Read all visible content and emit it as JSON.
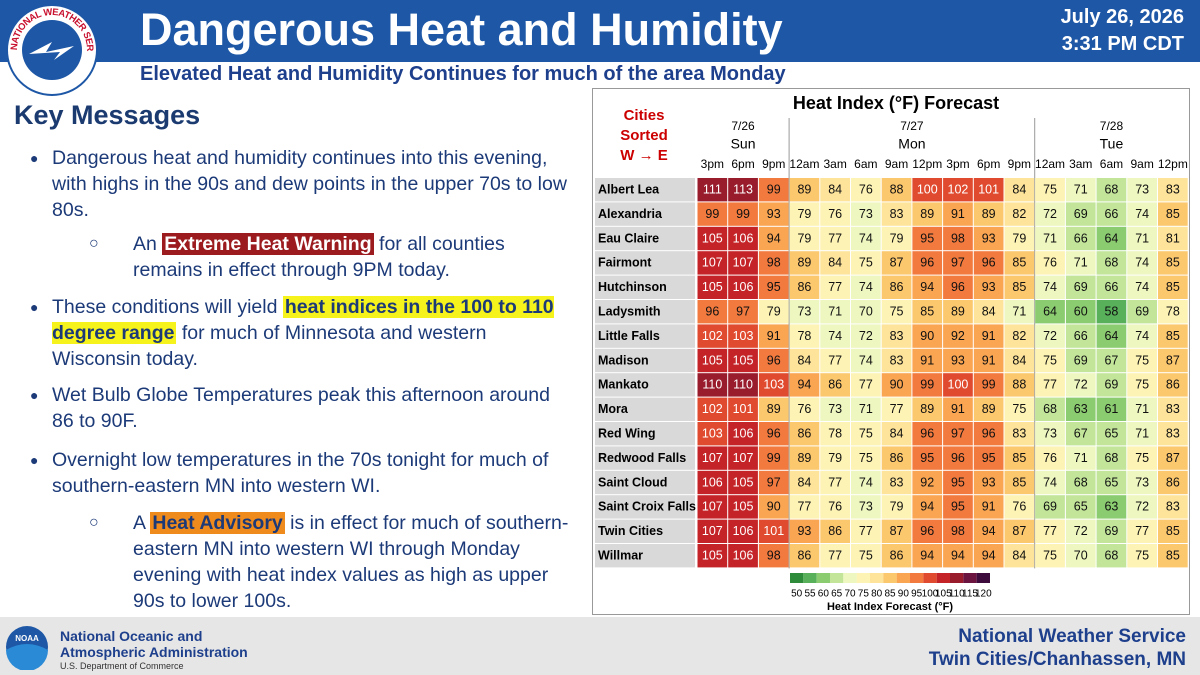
{
  "header": {
    "logo_text": "NATIONAL WEATHER SERVICE",
    "title": "Dangerous Heat and Humidity",
    "date": "July 26, 2026",
    "time": "3:31 PM CDT",
    "subtitle": "Elevated Heat and Humidity Continues for much of the area Monday"
  },
  "key_messages": {
    "heading": "Key Messages",
    "bullets": [
      {
        "parts": [
          "Dangerous heat and humidity continues into this evening, with highs in the 90s and dew points in the upper 70s to low 80s."
        ]
      },
      {
        "parts": [
          "An ",
          "Extreme Heat Warning",
          " for all counties remains in effect through 9PM today."
        ]
      },
      {
        "parts": [
          "These conditions will yield ",
          "heat indices in the 100 to 110 degree range",
          " for much of Minnesota and western Wisconsin today."
        ]
      },
      {
        "parts": [
          "Wet Bulb Globe Temperatures peak this afternoon around 86 to 90F."
        ]
      },
      {
        "parts": [
          "Overnight low temperatures in the 70s tonight for much of southern-eastern MN into western WI."
        ]
      },
      {
        "parts": [
          "A ",
          "Heat Advisory",
          " is in effect for much of southern-eastern MN into western WI through Monday evening with heat index values as high as upper 90s to lower 100s."
        ]
      }
    ]
  },
  "table": {
    "title": "Heat Index (°F) Forecast",
    "sort_note": [
      "Cities",
      "Sorted",
      "W → E"
    ],
    "days": [
      {
        "date": "7/26",
        "day": "Sun",
        "span": 3
      },
      {
        "date": "7/27",
        "day": "Mon",
        "span": 8
      },
      {
        "date": "7/28",
        "day": "Tue",
        "span": 5
      }
    ],
    "times": [
      "3pm",
      "6pm",
      "9pm",
      "12am",
      "3am",
      "6am",
      "9am",
      "12pm",
      "3pm",
      "6pm",
      "9pm",
      "12am",
      "3am",
      "6am",
      "9am",
      "12pm"
    ],
    "rows": [
      {
        "city": "Albert Lea",
        "values": [
          111,
          113,
          99,
          89,
          84,
          76,
          88,
          100,
          102,
          101,
          84,
          75,
          71,
          68,
          73,
          83
        ]
      },
      {
        "city": "Alexandria",
        "values": [
          99,
          99,
          93,
          79,
          76,
          73,
          83,
          89,
          91,
          89,
          82,
          72,
          69,
          66,
          74,
          85
        ]
      },
      {
        "city": "Eau Claire",
        "values": [
          105,
          106,
          94,
          79,
          77,
          74,
          79,
          95,
          98,
          93,
          79,
          71,
          66,
          64,
          71,
          81
        ]
      },
      {
        "city": "Fairmont",
        "values": [
          107,
          107,
          98,
          89,
          84,
          75,
          87,
          96,
          97,
          96,
          85,
          76,
          71,
          68,
          74,
          85
        ]
      },
      {
        "city": "Hutchinson",
        "values": [
          105,
          106,
          95,
          86,
          77,
          74,
          86,
          94,
          96,
          93,
          85,
          74,
          69,
          66,
          74,
          85
        ]
      },
      {
        "city": "Ladysmith",
        "values": [
          96,
          97,
          79,
          73,
          71,
          70,
          75,
          85,
          89,
          84,
          71,
          64,
          60,
          58,
          69,
          78
        ]
      },
      {
        "city": "Little Falls",
        "values": [
          102,
          103,
          91,
          78,
          74,
          72,
          83,
          90,
          92,
          91,
          82,
          72,
          66,
          64,
          74,
          85
        ]
      },
      {
        "city": "Madison",
        "values": [
          105,
          105,
          96,
          84,
          77,
          74,
          83,
          91,
          93,
          91,
          84,
          75,
          69,
          67,
          75,
          87
        ]
      },
      {
        "city": "Mankato",
        "values": [
          110,
          110,
          103,
          94,
          86,
          77,
          90,
          99,
          100,
          99,
          88,
          77,
          72,
          69,
          75,
          86
        ]
      },
      {
        "city": "Mora",
        "values": [
          102,
          101,
          89,
          76,
          73,
          71,
          77,
          89,
          91,
          89,
          75,
          68,
          63,
          61,
          71,
          83
        ]
      },
      {
        "city": "Red Wing",
        "values": [
          103,
          106,
          96,
          86,
          78,
          75,
          84,
          96,
          97,
          96,
          83,
          73,
          67,
          65,
          71,
          83
        ]
      },
      {
        "city": "Redwood Falls",
        "values": [
          107,
          107,
          99,
          89,
          79,
          75,
          86,
          95,
          96,
          95,
          85,
          76,
          71,
          68,
          75,
          87
        ]
      },
      {
        "city": "Saint Cloud",
        "values": [
          106,
          105,
          97,
          84,
          77,
          74,
          83,
          92,
          95,
          93,
          85,
          74,
          68,
          65,
          73,
          86
        ]
      },
      {
        "city": "Saint Croix Falls",
        "values": [
          107,
          105,
          90,
          77,
          76,
          73,
          79,
          94,
          95,
          91,
          76,
          69,
          65,
          63,
          72,
          83
        ]
      },
      {
        "city": "Twin Cities",
        "values": [
          107,
          106,
          101,
          93,
          86,
          77,
          87,
          96,
          98,
          94,
          87,
          77,
          72,
          69,
          77,
          85
        ]
      },
      {
        "city": "Willmar",
        "values": [
          105,
          106,
          98,
          86,
          77,
          75,
          86,
          94,
          94,
          94,
          84,
          75,
          70,
          68,
          75,
          85
        ]
      }
    ],
    "colorbar": {
      "title": "Heat Index Forecast (°F)",
      "ticks": [
        50,
        55,
        60,
        65,
        70,
        75,
        80,
        85,
        90,
        95,
        100,
        105,
        110,
        115,
        120
      ],
      "colors": [
        "#2e8b3a",
        "#58b05a",
        "#8ccc70",
        "#c2e59a",
        "#eef7c0",
        "#fdf3b4",
        "#fde49a",
        "#fcc86e",
        "#f9a552",
        "#f27a3e",
        "#e04a2e",
        "#c42428",
        "#981c2c",
        "#6c1440",
        "#3e0c3c"
      ]
    }
  },
  "footer": {
    "noaa_logo": "NOAA",
    "agency": [
      "National Oceanic and",
      "Atmospheric Administration"
    ],
    "department": "U.S. Department of Commerce",
    "office": [
      "National Weather Service",
      "Twin Cities/Chanhassen, MN"
    ]
  }
}
